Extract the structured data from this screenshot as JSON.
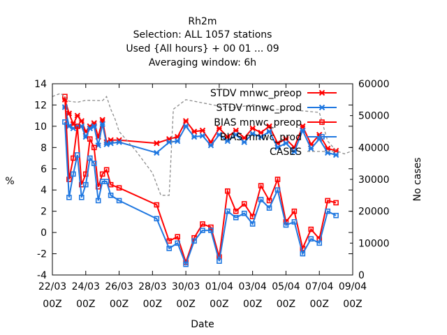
{
  "chart_data": {
    "type": "line",
    "title_lines": [
      "Rh2m",
      "Selection: ALL    1057 stations",
      "Used {All hours} + 00 01 ... 09",
      "Averaging window:  6h"
    ],
    "xlabel": "Date",
    "ylabel": "%",
    "y2label": "No cases",
    "xlim": [
      "2024-03-22 00:00",
      "2024-04-09 00:00"
    ],
    "ylim": [
      -4,
      14
    ],
    "y2lim": [
      0,
      60000
    ],
    "x_ticks": [
      {
        "date": "2024-03-22 00:00",
        "top": "22/03",
        "bottom": "00Z"
      },
      {
        "date": "2024-03-24 00:00",
        "top": "24/03",
        "bottom": "00Z"
      },
      {
        "date": "2024-03-26 00:00",
        "top": "26/03",
        "bottom": "00Z"
      },
      {
        "date": "2024-03-28 00:00",
        "top": "28/03",
        "bottom": "00Z"
      },
      {
        "date": "2024-03-30 00:00",
        "top": "30/03",
        "bottom": "00Z"
      },
      {
        "date": "2024-04-01 00:00",
        "top": "01/04",
        "bottom": "00Z"
      },
      {
        "date": "2024-04-03 00:00",
        "top": "03/04",
        "bottom": "00Z"
      },
      {
        "date": "2024-04-05 00:00",
        "top": "05/04",
        "bottom": "00Z"
      },
      {
        "date": "2024-04-07 00:00",
        "top": "07/04",
        "bottom": "00Z"
      },
      {
        "date": "2024-04-09 00:00",
        "top": "09/04",
        "bottom": "00Z"
      }
    ],
    "y_ticks": [
      "-4",
      "-2",
      "0",
      "2",
      "4",
      "6",
      "8",
      "10",
      "12",
      "14"
    ],
    "y2_ticks": [
      "0",
      "10000",
      "20000",
      "30000",
      "40000",
      "50000",
      "60000"
    ],
    "grid": false,
    "legend_position": "top-right",
    "series": [
      {
        "name": "STDV mnwc_preop",
        "color": "#ff0000",
        "marker": "x",
        "axis": "left",
        "x": [
          "2024-03-22 18:00",
          "2024-03-23 00:00",
          "2024-03-23 06:00",
          "2024-03-23 12:00",
          "2024-03-23 18:00",
          "2024-03-24 00:00",
          "2024-03-24 06:00",
          "2024-03-24 12:00",
          "2024-03-24 18:00",
          "2024-03-25 00:00",
          "2024-03-25 06:00",
          "2024-03-25 12:00",
          "2024-03-26 00:00",
          "2024-03-28 06:00",
          "2024-03-29 00:00",
          "2024-03-29 12:00",
          "2024-03-30 00:00",
          "2024-03-30 12:00",
          "2024-03-31 00:00",
          "2024-03-31 12:00",
          "2024-04-01 00:00",
          "2024-04-01 12:00",
          "2024-04-02 00:00",
          "2024-04-02 12:00",
          "2024-04-03 00:00",
          "2024-04-03 12:00",
          "2024-04-04 00:00",
          "2024-04-04 12:00",
          "2024-04-05 00:00",
          "2024-04-05 12:00",
          "2024-04-06 00:00",
          "2024-04-06 12:00",
          "2024-04-07 00:00",
          "2024-04-07 12:00",
          "2024-04-08 00:00"
        ],
        "values": [
          12.5,
          11.2,
          10.2,
          11.0,
          10.5,
          9.5,
          10.0,
          10.3,
          9.0,
          10.6,
          8.5,
          8.7,
          8.7,
          8.4,
          8.8,
          9.0,
          10.5,
          9.5,
          9.6,
          8.5,
          9.8,
          9.0,
          9.6,
          8.9,
          9.8,
          9.4,
          10.0,
          8.4,
          8.8,
          8.0,
          10.0,
          8.3,
          9.2,
          7.9,
          7.7
        ]
      },
      {
        "name": "STDV mnwc_prod",
        "color": "#1f77e0",
        "marker": "x",
        "axis": "left",
        "x": [
          "2024-03-22 18:00",
          "2024-03-23 00:00",
          "2024-03-23 06:00",
          "2024-03-23 12:00",
          "2024-03-23 18:00",
          "2024-03-24 00:00",
          "2024-03-24 06:00",
          "2024-03-24 12:00",
          "2024-03-24 18:00",
          "2024-03-25 00:00",
          "2024-03-25 06:00",
          "2024-03-25 12:00",
          "2024-03-26 00:00",
          "2024-03-28 06:00",
          "2024-03-29 00:00",
          "2024-03-29 12:00",
          "2024-03-30 00:00",
          "2024-03-30 12:00",
          "2024-03-31 00:00",
          "2024-03-31 12:00",
          "2024-04-01 00:00",
          "2024-04-01 12:00",
          "2024-04-02 00:00",
          "2024-04-02 12:00",
          "2024-04-03 00:00",
          "2024-04-03 12:00",
          "2024-04-04 00:00",
          "2024-04-04 12:00",
          "2024-04-05 00:00",
          "2024-04-05 12:00",
          "2024-04-06 00:00",
          "2024-04-06 12:00",
          "2024-04-07 00:00",
          "2024-04-07 12:00",
          "2024-04-08 00:00"
        ],
        "values": [
          11.8,
          10.0,
          9.8,
          10.0,
          10.0,
          9.0,
          9.8,
          10.0,
          8.2,
          10.2,
          8.3,
          8.4,
          8.5,
          7.5,
          8.5,
          8.6,
          10.0,
          9.0,
          9.1,
          8.2,
          9.2,
          8.6,
          9.2,
          8.5,
          9.3,
          9.0,
          9.5,
          8.0,
          8.4,
          7.6,
          9.6,
          7.9,
          8.8,
          7.5,
          7.3
        ]
      },
      {
        "name": "BIAS mnwc_preop",
        "color": "#ff0000",
        "marker": "square",
        "axis": "left",
        "x": [
          "2024-03-22 18:00",
          "2024-03-23 00:00",
          "2024-03-23 06:00",
          "2024-03-23 12:00",
          "2024-03-23 18:00",
          "2024-03-24 00:00",
          "2024-03-24 06:00",
          "2024-03-24 12:00",
          "2024-03-24 18:00",
          "2024-03-25 00:00",
          "2024-03-25 06:00",
          "2024-03-25 12:00",
          "2024-03-26 00:00",
          "2024-03-28 06:00",
          "2024-03-29 00:00",
          "2024-03-29 12:00",
          "2024-03-30 00:00",
          "2024-03-30 12:00",
          "2024-03-31 00:00",
          "2024-03-31 12:00",
          "2024-04-01 00:00",
          "2024-04-01 12:00",
          "2024-04-02 00:00",
          "2024-04-02 12:00",
          "2024-04-03 00:00",
          "2024-04-03 12:00",
          "2024-04-04 00:00",
          "2024-04-04 12:00",
          "2024-04-05 00:00",
          "2024-04-05 12:00",
          "2024-04-06 00:00",
          "2024-04-06 12:00",
          "2024-04-07 00:00",
          "2024-04-07 12:00",
          "2024-04-08 00:00"
        ],
        "values": [
          12.8,
          5.0,
          7.0,
          10.0,
          4.5,
          5.5,
          8.8,
          8.0,
          4.3,
          5.5,
          5.9,
          4.5,
          4.2,
          2.6,
          -0.8,
          -0.4,
          -2.8,
          -0.5,
          0.8,
          0.5,
          -2.3,
          3.9,
          2.0,
          2.7,
          1.5,
          4.4,
          3.0,
          5.0,
          1.0,
          2.0,
          -1.5,
          0.3,
          -0.6,
          3.0,
          2.8
        ]
      },
      {
        "name": "BIAS mnwc_prod",
        "color": "#1f77e0",
        "marker": "square",
        "axis": "left",
        "x": [
          "2024-03-22 18:00",
          "2024-03-23 00:00",
          "2024-03-23 06:00",
          "2024-03-23 12:00",
          "2024-03-23 18:00",
          "2024-03-24 00:00",
          "2024-03-24 06:00",
          "2024-03-24 12:00",
          "2024-03-24 18:00",
          "2024-03-25 00:00",
          "2024-03-25 06:00",
          "2024-03-25 12:00",
          "2024-03-26 00:00",
          "2024-03-28 06:00",
          "2024-03-29 00:00",
          "2024-03-29 12:00",
          "2024-03-30 00:00",
          "2024-03-30 12:00",
          "2024-03-31 00:00",
          "2024-03-31 12:00",
          "2024-04-01 00:00",
          "2024-04-01 12:00",
          "2024-04-02 00:00",
          "2024-04-02 12:00",
          "2024-04-03 00:00",
          "2024-04-03 12:00",
          "2024-04-04 00:00",
          "2024-04-04 12:00",
          "2024-04-05 00:00",
          "2024-04-05 12:00",
          "2024-04-06 00:00",
          "2024-04-06 12:00",
          "2024-04-07 00:00",
          "2024-04-07 12:00",
          "2024-04-08 00:00"
        ],
        "values": [
          10.4,
          3.3,
          5.5,
          7.3,
          3.3,
          4.5,
          7.0,
          6.5,
          3.0,
          4.8,
          4.8,
          3.5,
          3.0,
          1.3,
          -1.5,
          -1.0,
          -3.0,
          -0.8,
          0.2,
          0.2,
          -2.7,
          2.0,
          1.4,
          1.8,
          0.8,
          3.1,
          2.3,
          4.0,
          0.7,
          1.0,
          -2.0,
          -0.6,
          -1.0,
          2.0,
          1.6
        ]
      },
      {
        "name": "CASES",
        "color": "#8c8c8c",
        "style": "dashed",
        "axis": "right",
        "x": [
          "2024-03-22 00:00",
          "2024-03-22 12:00",
          "2024-03-23 00:00",
          "2024-03-23 12:00",
          "2024-03-24 00:00",
          "2024-03-25 00:00",
          "2024-03-25 06:00",
          "2024-03-25 12:00",
          "2024-03-25 18:00",
          "2024-03-26 00:00",
          "2024-03-27 00:00",
          "2024-03-28 00:00",
          "2024-03-28 12:00",
          "2024-03-29 00:00",
          "2024-03-29 06:00",
          "2024-03-30 00:00",
          "2024-03-31 00:00",
          "2024-04-01 00:00",
          "2024-04-02 00:00",
          "2024-04-03 00:00",
          "2024-04-04 00:00",
          "2024-04-05 00:00",
          "2024-04-06 00:00",
          "2024-04-07 00:00",
          "2024-04-07 12:00",
          "2024-04-08 00:00",
          "2024-04-08 12:00",
          "2024-04-09 00:00"
        ],
        "values": [
          56000,
          57000,
          54500,
          54200,
          54800,
          54700,
          56000,
          52000,
          49000,
          45000,
          39000,
          32000,
          25000,
          25000,
          52000,
          55000,
          54000,
          53000,
          52500,
          53500,
          52000,
          51800,
          51500,
          51000,
          42000,
          39000,
          38000,
          39000
        ]
      }
    ]
  }
}
